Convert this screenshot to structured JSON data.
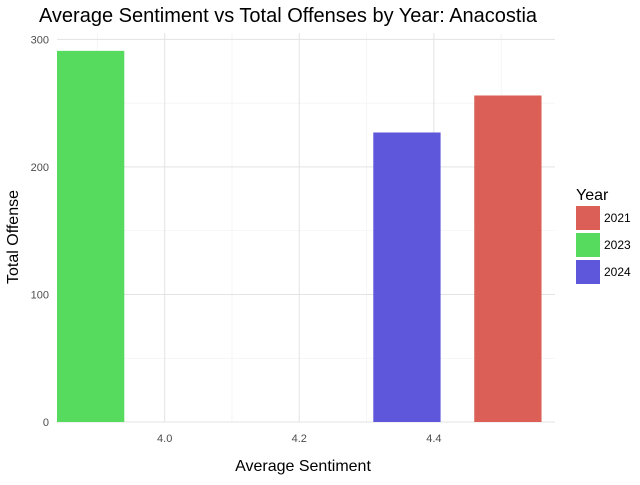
{
  "chart_data": {
    "type": "bar",
    "title": "Average Sentiment vs Total Offenses by Year: Anacostia",
    "xlabel": "Average Sentiment",
    "ylabel": "Total Offense",
    "xlim": [
      3.84,
      4.58
    ],
    "ylim": [
      0,
      305
    ],
    "x_ticks": [
      4.0,
      4.2,
      4.4
    ],
    "x_tick_labels": [
      "4.0",
      "4.2",
      "4.4"
    ],
    "y_ticks": [
      0,
      100,
      200,
      300
    ],
    "y_tick_labels": [
      "0",
      "100",
      "200",
      "300"
    ],
    "grid": true,
    "bar_width": 0.1,
    "legend": {
      "title": "Year",
      "position": "right",
      "entries": [
        {
          "label": "2021",
          "color": "#db5f57"
        },
        {
          "label": "2023",
          "color": "#57db5f"
        },
        {
          "label": "2024",
          "color": "#5f57db"
        }
      ]
    },
    "series": [
      {
        "name": "2021",
        "x": 4.51,
        "value": 256,
        "color": "#db5f57"
      },
      {
        "name": "2023",
        "x": 3.89,
        "value": 291,
        "color": "#57db5f"
      },
      {
        "name": "2024",
        "x": 4.36,
        "value": 227,
        "color": "#5f57db"
      }
    ]
  }
}
